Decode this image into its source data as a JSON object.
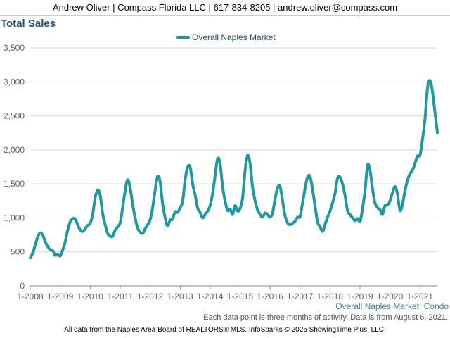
{
  "header": {
    "contact": "Andrew Oliver | Compass Florida LLC | 617-834-8205 | andrew.oliver@compass.com"
  },
  "chart_data": {
    "type": "line",
    "title": "Total Sales",
    "subtitle": "Overall Naples Market: Condo",
    "legend": "top-center",
    "grid": true,
    "ylim": [
      0,
      3500
    ],
    "yticks": [
      0,
      500,
      1000,
      1500,
      2000,
      2500,
      3000,
      3500
    ],
    "ytick_labels": [
      "0",
      "500",
      "1,000",
      "1,500",
      "2,000",
      "2,500",
      "3,000",
      "3,500"
    ],
    "xlim": [
      2008.0,
      2021.58
    ],
    "xticks": [
      2008,
      2009,
      2010,
      2011,
      2012,
      2013,
      2014,
      2015,
      2016,
      2017,
      2018,
      2019,
      2020,
      2021
    ],
    "xtick_labels": [
      "1-2008",
      "1-2009",
      "1-2010",
      "1-2011",
      "1-2012",
      "1-2013",
      "1-2014",
      "1-2015",
      "1-2016",
      "1-2017",
      "1-2018",
      "1-2019",
      "1-2020",
      "1-2021"
    ],
    "series": [
      {
        "name": "Overall Naples Market",
        "color": "#23979c",
        "x": [
          2008.0,
          2008.083,
          2008.167,
          2008.25,
          2008.333,
          2008.417,
          2008.5,
          2008.583,
          2008.667,
          2008.75,
          2008.833,
          2008.917,
          2009.0,
          2009.083,
          2009.167,
          2009.25,
          2009.333,
          2009.417,
          2009.5,
          2009.583,
          2009.667,
          2009.75,
          2009.833,
          2009.917,
          2010.0,
          2010.083,
          2010.167,
          2010.25,
          2010.333,
          2010.417,
          2010.5,
          2010.583,
          2010.667,
          2010.75,
          2010.833,
          2010.917,
          2011.0,
          2011.083,
          2011.167,
          2011.25,
          2011.333,
          2011.417,
          2011.5,
          2011.583,
          2011.667,
          2011.75,
          2011.833,
          2011.917,
          2012.0,
          2012.083,
          2012.167,
          2012.25,
          2012.333,
          2012.417,
          2012.5,
          2012.583,
          2012.667,
          2012.75,
          2012.833,
          2012.917,
          2013.0,
          2013.083,
          2013.167,
          2013.25,
          2013.333,
          2013.417,
          2013.5,
          2013.583,
          2013.667,
          2013.75,
          2013.833,
          2013.917,
          2014.0,
          2014.083,
          2014.167,
          2014.25,
          2014.333,
          2014.417,
          2014.5,
          2014.583,
          2014.667,
          2014.75,
          2014.833,
          2014.917,
          2015.0,
          2015.083,
          2015.167,
          2015.25,
          2015.333,
          2015.417,
          2015.5,
          2015.583,
          2015.667,
          2015.75,
          2015.833,
          2015.917,
          2016.0,
          2016.083,
          2016.167,
          2016.25,
          2016.333,
          2016.417,
          2016.5,
          2016.583,
          2016.667,
          2016.75,
          2016.833,
          2016.917,
          2017.0,
          2017.083,
          2017.167,
          2017.25,
          2017.333,
          2017.417,
          2017.5,
          2017.583,
          2017.667,
          2017.75,
          2017.833,
          2017.917,
          2018.0,
          2018.083,
          2018.167,
          2018.25,
          2018.333,
          2018.417,
          2018.5,
          2018.583,
          2018.667,
          2018.75,
          2018.833,
          2018.917,
          2019.0,
          2019.083,
          2019.167,
          2019.25,
          2019.333,
          2019.417,
          2019.5,
          2019.583,
          2019.667,
          2019.75,
          2019.833,
          2019.917,
          2020.0,
          2020.083,
          2020.167,
          2020.25,
          2020.333,
          2020.417,
          2020.5,
          2020.583,
          2020.667,
          2020.75,
          2020.833,
          2020.917,
          2021.0,
          2021.083,
          2021.167,
          2021.25,
          2021.333,
          2021.417,
          2021.5,
          2021.583
        ],
        "values": [
          410,
          480,
          600,
          720,
          780,
          750,
          650,
          580,
          530,
          520,
          450,
          460,
          440,
          530,
          650,
          820,
          940,
          990,
          980,
          900,
          820,
          800,
          840,
          890,
          920,
          1050,
          1300,
          1410,
          1330,
          1060,
          900,
          770,
          730,
          730,
          820,
          870,
          930,
          1150,
          1400,
          1560,
          1440,
          1200,
          1000,
          850,
          790,
          770,
          840,
          900,
          970,
          1150,
          1410,
          1610,
          1530,
          1210,
          1000,
          880,
          970,
          980,
          1090,
          1080,
          1150,
          1240,
          1560,
          1740,
          1750,
          1500,
          1340,
          1150,
          1080,
          1000,
          1050,
          1100,
          1180,
          1360,
          1620,
          1870,
          1800,
          1460,
          1250,
          1110,
          1130,
          1050,
          1180,
          1100,
          1140,
          1290,
          1700,
          1920,
          1800,
          1450,
          1250,
          1120,
          1050,
          1010,
          1070,
          1050,
          1010,
          1070,
          1280,
          1440,
          1460,
          1250,
          1030,
          930,
          900,
          920,
          950,
          1010,
          1020,
          1220,
          1430,
          1600,
          1610,
          1420,
          1180,
          940,
          870,
          800,
          900,
          1010,
          1100,
          1220,
          1360,
          1580,
          1600,
          1500,
          1330,
          1110,
          1050,
          1000,
          960,
          990,
          950,
          1130,
          1400,
          1770,
          1700,
          1430,
          1220,
          1150,
          1120,
          1050,
          1180,
          1190,
          1250,
          1370,
          1460,
          1350,
          1110,
          1200,
          1400,
          1550,
          1650,
          1700,
          1800,
          1910,
          1920,
          2150,
          2450,
          2900,
          3020,
          2850,
          2550,
          2250
        ]
      }
    ]
  },
  "notes": {
    "data_point": "Each data point is three months of activity. Data is from August 6, 2021."
  },
  "footer": {
    "text": "All data from the Naples Area Board of REALTORS® MLS. InfoSparks © 2025 ShowingTime Plus, LLC."
  }
}
